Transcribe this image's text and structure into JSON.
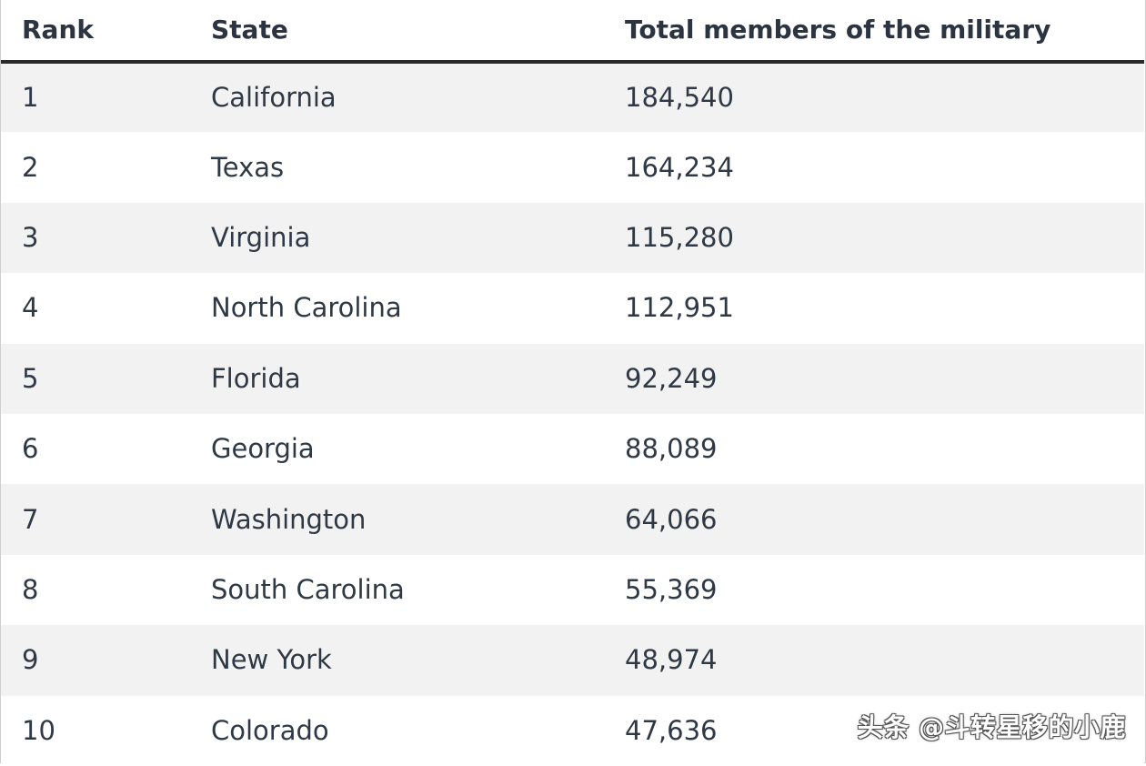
{
  "chart_data": {
    "type": "table",
    "columns": [
      "Rank",
      "State",
      "Total members of the military"
    ],
    "rows": [
      {
        "rank": "1",
        "state": "California",
        "total": "184,540"
      },
      {
        "rank": "2",
        "state": "Texas",
        "total": "164,234"
      },
      {
        "rank": "3",
        "state": "Virginia",
        "total": "115,280"
      },
      {
        "rank": "4",
        "state": "North Carolina",
        "total": "112,951"
      },
      {
        "rank": "5",
        "state": "Florida",
        "total": "92,249"
      },
      {
        "rank": "6",
        "state": "Georgia",
        "total": "88,089"
      },
      {
        "rank": "7",
        "state": "Washington",
        "total": "64,066"
      },
      {
        "rank": "8",
        "state": "South Carolina",
        "total": "55,369"
      },
      {
        "rank": "9",
        "state": "New York",
        "total": "48,974"
      },
      {
        "rank": "10",
        "state": "Colorado",
        "total": "47,636"
      }
    ],
    "stripe_color": "#f2f2f2",
    "header_rule_color": "#2a2a2a"
  },
  "watermark": {
    "text": "头条 @斗转星移的小鹿"
  }
}
